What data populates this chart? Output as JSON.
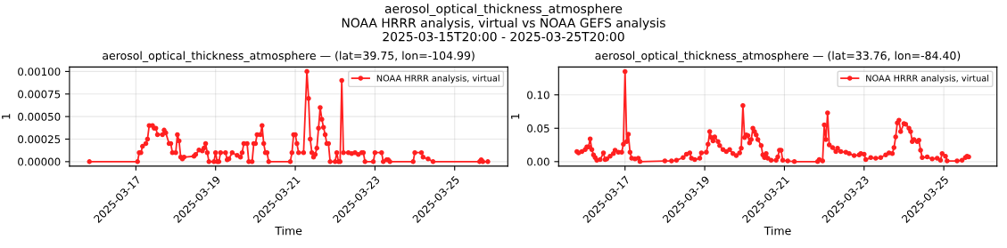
{
  "chart_data": [
    {
      "type": "line",
      "title": "aerosol_optical_thickness_atmosphere — (lat=39.75, lon=-104.99)",
      "xlabel": "Time",
      "ylabel": "1",
      "annotations": [
        "aerosol_optical_thickness_atmosphere\nNOAA HRRR analysis, virtual vs NOAA GEFS analysis\n2025-03-15T20:00 - 2025-03-25T20:00"
      ],
      "xlim": [
        "2025-03-15T08:00",
        "2025-03-26T08:00"
      ],
      "xticks": [
        {
          "value": "2025-03-17",
          "label": "2025-03-17"
        },
        {
          "value": "2025-03-19",
          "label": "2025-03-19"
        },
        {
          "value": "2025-03-21",
          "label": "2025-03-21"
        },
        {
          "value": "2025-03-23",
          "label": "2025-03-23"
        },
        {
          "value": "2025-03-25",
          "label": "2025-03-25"
        }
      ],
      "ylim": [
        -5e-05,
        0.00105
      ],
      "yticks": [
        {
          "value": 0,
          "label": "0.00000"
        },
        {
          "value": 0.00025,
          "label": "0.00025"
        },
        {
          "value": 0.0005,
          "label": "0.00050"
        },
        {
          "value": 0.00075,
          "label": "0.00075"
        },
        {
          "value": 0.001,
          "label": "0.00100"
        }
      ],
      "grid": true,
      "legend": "top right",
      "marker": "circle",
      "line_style": "solid",
      "series": [
        {
          "name": "NOAA HRRR analysis, virtual",
          "color": "#ff2020",
          "x": [
            "2025-03-15T20:00",
            "2025-03-17T01:00",
            "2025-03-17T02:00",
            "2025-03-17T03:00",
            "2025-03-17T04:00",
            "2025-03-17T06:00",
            "2025-03-17T07:00",
            "2025-03-17T08:00",
            "2025-03-17T10:00",
            "2025-03-17T11:00",
            "2025-03-17T12:00",
            "2025-03-17T13:00",
            "2025-03-17T16:00",
            "2025-03-17T17:00",
            "2025-03-17T18:00",
            "2025-03-17T20:00",
            "2025-03-17T21:00",
            "2025-03-17T22:00",
            "2025-03-18T00:00",
            "2025-03-18T01:00",
            "2025-03-18T02:00",
            "2025-03-18T03:00",
            "2025-03-18T04:00",
            "2025-03-18T05:00",
            "2025-03-18T11:00",
            "2025-03-18T12:00",
            "2025-03-18T14:00",
            "2025-03-18T16:00",
            "2025-03-18T17:00",
            "2025-03-18T18:00",
            "2025-03-18T19:00",
            "2025-03-18T20:00",
            "2025-03-18T23:00",
            "2025-03-19T00:00",
            "2025-03-19T01:00",
            "2025-03-19T02:00",
            "2025-03-19T03:00",
            "2025-03-19T06:00",
            "2025-03-19T07:00",
            "2025-03-19T08:00",
            "2025-03-19T10:00",
            "2025-03-19T13:00",
            "2025-03-19T15:00",
            "2025-03-19T16:00",
            "2025-03-19T17:00",
            "2025-03-19T19:00",
            "2025-03-19T20:00",
            "2025-03-19T22:00",
            "2025-03-19T23:00",
            "2025-03-20T00:00",
            "2025-03-20T01:00",
            "2025-03-20T03:00",
            "2025-03-20T04:00",
            "2025-03-20T05:00",
            "2025-03-20T06:00",
            "2025-03-20T07:00",
            "2025-03-20T08:00",
            "2025-03-20T21:00",
            "2025-03-20T22:00",
            "2025-03-20T23:00",
            "2025-03-21T00:00",
            "2025-03-21T01:00",
            "2025-03-21T02:00",
            "2025-03-21T05:00",
            "2025-03-21T07:00",
            "2025-03-21T08:00",
            "2025-03-21T09:00",
            "2025-03-21T10:00",
            "2025-03-21T11:00",
            "2025-03-21T12:00",
            "2025-03-21T13:00",
            "2025-03-21T14:00",
            "2025-03-21T15:00",
            "2025-03-21T16:00",
            "2025-03-21T17:00",
            "2025-03-21T18:00",
            "2025-03-21T19:00",
            "2025-03-21T20:00",
            "2025-03-21T21:00",
            "2025-03-22T00:00",
            "2025-03-22T01:00",
            "2025-03-22T02:00",
            "2025-03-22T03:00",
            "2025-03-22T04:00",
            "2025-03-22T05:00",
            "2025-03-22T08:00",
            "2025-03-22T10:00",
            "2025-03-22T12:00",
            "2025-03-22T14:00",
            "2025-03-22T16:00",
            "2025-03-22T17:00",
            "2025-03-22T18:00",
            "2025-03-22T23:00",
            "2025-03-23T00:00",
            "2025-03-23T04:00",
            "2025-03-23T05:00",
            "2025-03-23T07:00",
            "2025-03-23T08:00",
            "2025-03-23T09:00",
            "2025-03-23T23:00",
            "2025-03-24T00:00",
            "2025-03-24T04:00",
            "2025-03-24T05:00",
            "2025-03-24T08:00",
            "2025-03-24T11:00",
            "2025-03-25T15:00",
            "2025-03-25T16:00",
            "2025-03-25T17:00",
            "2025-03-25T20:00"
          ],
          "values": [
            0,
            0,
            0.0001,
            0.0001,
            0.00017,
            0.0002,
            0.00025,
            0.0004,
            0.0004,
            0.00037,
            0.00037,
            0.0003,
            0.0003,
            0.00035,
            0.00032,
            0.0002,
            0.0002,
            0.0001,
            0.0001,
            0.0003,
            0.00023,
            5e-05,
            3e-05,
            5e-05,
            6e-05,
            8e-05,
            0.00013,
            0.00012,
            0.00015,
            0.0002,
            0.0001,
            0,
            0,
            0.0001,
            0,
            0,
            0.0001,
            0.0001,
            2e-05,
            3e-05,
            0.0001,
            7e-05,
            5e-05,
            0.0001,
            0.0002,
            0.0002,
            0,
            0,
            0.0002,
            0.0002,
            0.0003,
            0.0003,
            0.0004,
            0.0002,
            0.0001,
            0.0001,
            0,
            0,
            0.0001,
            0.0003,
            0.0003,
            0.0002,
            0.0001,
            0.0001,
            0.001,
            0.0007,
            0.00025,
            0.0001,
            5e-05,
            8e-05,
            0.00015,
            0.00037,
            0.0006,
            0.00047,
            0.00038,
            0.0003,
            0.0002,
            0.0002,
            0,
            0,
            0.0001,
            0,
            0,
            0.0009,
            0.0001,
            0.0001,
            9e-05,
            0.0001,
            8e-05,
            0.0001,
            0.0001,
            0,
            0,
            0.0001,
            0.0001,
            0,
            2e-05,
            2e-05,
            0,
            0,
            0.0001,
            0.0001,
            5e-05,
            3e-05,
            0,
            0,
            2e-05,
            0,
            0
          ]
        }
      ]
    },
    {
      "type": "line",
      "title": "aerosol_optical_thickness_atmosphere — (lat=33.76, lon=-84.40)",
      "xlabel": "Time",
      "ylabel": "1",
      "xlim": [
        "2025-03-15T08:00",
        "2025-03-26T08:00"
      ],
      "xticks": [
        {
          "value": "2025-03-17",
          "label": "2025-03-17"
        },
        {
          "value": "2025-03-19",
          "label": "2025-03-19"
        },
        {
          "value": "2025-03-21",
          "label": "2025-03-21"
        },
        {
          "value": "2025-03-23",
          "label": "2025-03-23"
        },
        {
          "value": "2025-03-25",
          "label": "2025-03-25"
        }
      ],
      "ylim": [
        -0.0068,
        0.1418
      ],
      "yticks": [
        {
          "value": 0,
          "label": "0.00"
        },
        {
          "value": 0.05,
          "label": "0.05"
        },
        {
          "value": 0.1,
          "label": "0.10"
        }
      ],
      "grid": true,
      "legend": "top right",
      "marker": "circle",
      "line_style": "solid",
      "series": [
        {
          "name": "NOAA HRRR analysis, virtual",
          "color": "#ff2020",
          "x": [
            "2025-03-15T19:00",
            "2025-03-15T20:00",
            "2025-03-15T22:00",
            "2025-03-16T00:00",
            "2025-03-16T01:00",
            "2025-03-16T02:00",
            "2025-03-16T03:00",
            "2025-03-16T04:00",
            "2025-03-16T05:00",
            "2025-03-16T06:00",
            "2025-03-16T07:00",
            "2025-03-16T09:00",
            "2025-03-16T11:00",
            "2025-03-16T12:00",
            "2025-03-16T13:00",
            "2025-03-16T15:00",
            "2025-03-16T17:00",
            "2025-03-16T18:00",
            "2025-03-16T20:00",
            "2025-03-16T22:00",
            "2025-03-16T23:00",
            "2025-03-17T00:00",
            "2025-03-17T01:00",
            "2025-03-17T02:00",
            "2025-03-17T03:00",
            "2025-03-17T04:00",
            "2025-03-17T06:00",
            "2025-03-17T08:00",
            "2025-03-17T09:00",
            "2025-03-18T00:00",
            "2025-03-18T04:00",
            "2025-03-18T07:00",
            "2025-03-18T11:00",
            "2025-03-18T13:00",
            "2025-03-18T15:00",
            "2025-03-18T16:00",
            "2025-03-18T18:00",
            "2025-03-18T21:00",
            "2025-03-18T22:00",
            "2025-03-19T01:00",
            "2025-03-19T02:00",
            "2025-03-19T03:00",
            "2025-03-19T04:00",
            "2025-03-19T05:00",
            "2025-03-19T06:00",
            "2025-03-19T08:00",
            "2025-03-19T09:00",
            "2025-03-19T11:00",
            "2025-03-19T13:00",
            "2025-03-19T15:00",
            "2025-03-19T17:00",
            "2025-03-19T19:00",
            "2025-03-19T21:00",
            "2025-03-19T22:00",
            "2025-03-19T23:00",
            "2025-03-20T00:00",
            "2025-03-20T01:00",
            "2025-03-20T02:00",
            "2025-03-20T03:00",
            "2025-03-20T04:00",
            "2025-03-20T05:00",
            "2025-03-20T06:00",
            "2025-03-20T07:00",
            "2025-03-20T08:00",
            "2025-03-20T10:00",
            "2025-03-20T11:00",
            "2025-03-20T12:00",
            "2025-03-20T13:00",
            "2025-03-20T14:00",
            "2025-03-20T16:00",
            "2025-03-20T19:00",
            "2025-03-20T20:00",
            "2025-03-20T21:00",
            "2025-03-20T22:00",
            "2025-03-20T23:00",
            "2025-03-21T02:00",
            "2025-03-21T06:00",
            "2025-03-21T20:00",
            "2025-03-21T21:00",
            "2025-03-21T23:00",
            "2025-03-22T00:00",
            "2025-03-22T01:00",
            "2025-03-22T02:00",
            "2025-03-22T03:00",
            "2025-03-22T05:00",
            "2025-03-22T07:00",
            "2025-03-22T08:00",
            "2025-03-22T10:00",
            "2025-03-22T13:00",
            "2025-03-22T15:00",
            "2025-03-22T18:00",
            "2025-03-22T21:00",
            "2025-03-22T22:00",
            "2025-03-23T00:00",
            "2025-03-23T01:00",
            "2025-03-23T04:00",
            "2025-03-23T07:00",
            "2025-03-23T10:00",
            "2025-03-23T13:00",
            "2025-03-23T15:00",
            "2025-03-23T17:00",
            "2025-03-23T18:00",
            "2025-03-23T19:00",
            "2025-03-23T20:00",
            "2025-03-23T21:00",
            "2025-03-23T22:00",
            "2025-03-24T00:00",
            "2025-03-24T01:00",
            "2025-03-24T03:00",
            "2025-03-24T04:00",
            "2025-03-24T05:00",
            "2025-03-24T06:00",
            "2025-03-24T08:00",
            "2025-03-24T09:00",
            "2025-03-24T10:00",
            "2025-03-24T11:00",
            "2025-03-24T14:00",
            "2025-03-24T17:00",
            "2025-03-24T20:00",
            "2025-03-24T22:00",
            "2025-03-24T23:00",
            "2025-03-25T01:00",
            "2025-03-25T02:00",
            "2025-03-25T08:00",
            "2025-03-25T11:00",
            "2025-03-25T13:00",
            "2025-03-25T14:00",
            "2025-03-25T15:00"
          ],
          "values": [
            0.015,
            0.013,
            0.015,
            0.018,
            0.022,
            0.022,
            0.034,
            0.018,
            0.01,
            0.006,
            0.002,
            0.003,
            0.013,
            0.003,
            0.004,
            0.008,
            0.012,
            0.017,
            0.014,
            0.014,
            0.026,
            0.135,
            0.03,
            0.041,
            0.014,
            0.005,
            0.004,
            0.005,
            0,
            0.001,
            0.001,
            0.002,
            0.006,
            0.011,
            0.013,
            0.005,
            0.003,
            0.005,
            0.013,
            0.014,
            0.026,
            0.045,
            0.036,
            0.031,
            0.037,
            0.03,
            0.024,
            0.018,
            0.015,
            0.018,
            0.012,
            0.009,
            0.013,
            0.02,
            0.084,
            0.036,
            0.04,
            0.039,
            0.028,
            0.033,
            0.05,
            0.045,
            0.04,
            0.033,
            0.024,
            0.01,
            0.006,
            0.012,
            0.005,
            0.002,
            0.002,
            0.007,
            0.017,
            0.017,
            0.002,
            0.001,
            0,
            0,
            0.003,
            0.001,
            0.055,
            0.033,
            0.073,
            0.025,
            0.021,
            0.015,
            0.02,
            0.015,
            0.014,
            0.012,
            0.009,
            0.01,
            0.012,
            0.011,
            0.003,
            0.006,
            0.005,
            0.006,
            0.01,
            0.013,
            0.012,
            0.021,
            0.037,
            0.058,
            0.062,
            0.045,
            0.057,
            0.056,
            0.05,
            0.045,
            0.03,
            0.033,
            0.03,
            0.032,
            0.017,
            0.006,
            0.007,
            0.004,
            0.005,
            0.002,
            0.012,
            0.008,
            0.001,
            0.001,
            0.002,
            0.006,
            0.008,
            0.007
          ]
        }
      ]
    }
  ]
}
